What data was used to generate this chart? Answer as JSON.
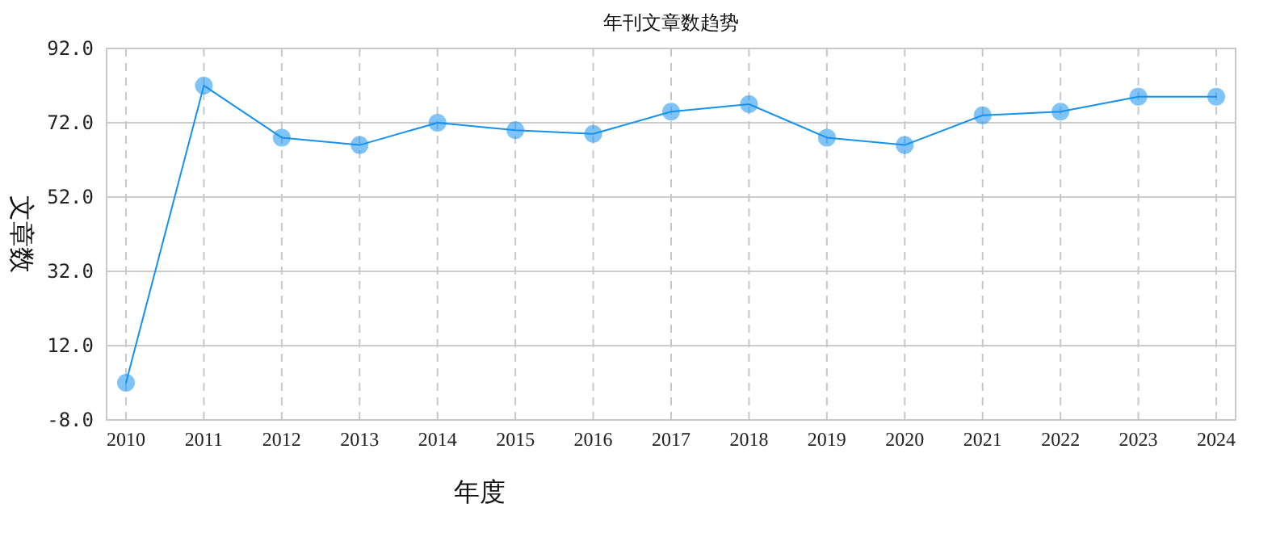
{
  "chart_data": {
    "type": "line",
    "title": "年刊文章数趋势",
    "xlabel": "年度",
    "ylabel": "文章数",
    "categories": [
      "2010",
      "2011",
      "2012",
      "2013",
      "2014",
      "2015",
      "2016",
      "2017",
      "2018",
      "2019",
      "2020",
      "2021",
      "2022",
      "2023",
      "2024"
    ],
    "series": [
      {
        "color": "#1591f0",
        "values": [
          2,
          82,
          68,
          66,
          72,
          70,
          69,
          75,
          77,
          68,
          66,
          74,
          75,
          79,
          79
        ]
      }
    ],
    "ylim": [
      -8,
      92
    ],
    "yticks": [
      {
        "value": -8,
        "label": "-8.0"
      },
      {
        "value": 12,
        "label": "12.0"
      },
      {
        "value": 32,
        "label": "32.0"
      },
      {
        "value": 52,
        "label": "52.0"
      },
      {
        "value": 72,
        "label": "72.0"
      },
      {
        "value": 92,
        "label": "92.0"
      }
    ],
    "grid": true,
    "marker": "circle",
    "line_style": "solid"
  }
}
